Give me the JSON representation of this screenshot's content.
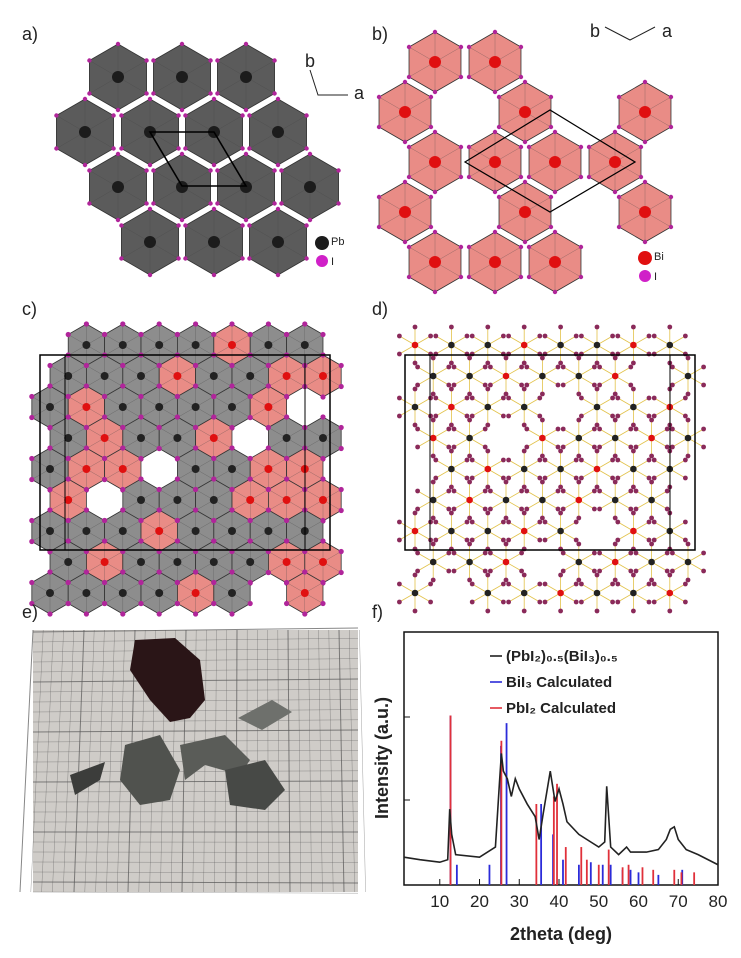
{
  "panels": [
    {
      "label": "a)",
      "axes": [
        "b",
        "a"
      ],
      "legend": [
        "Pb",
        "I"
      ]
    },
    {
      "label": "b)",
      "axes": [
        "b",
        "a"
      ],
      "legend": [
        "Bi",
        "I"
      ]
    },
    {
      "label": "c)"
    },
    {
      "label": "d)"
    },
    {
      "label": "e)"
    },
    {
      "label": "f)"
    }
  ],
  "chart_data": {
    "type": "line",
    "x_label": "2theta (deg)",
    "y_label": "Intensity (a.u.)",
    "xlim": [
      1,
      80
    ],
    "xticks": [
      10,
      20,
      30,
      40,
      50,
      60,
      70,
      80
    ],
    "ylim": [
      0,
      100
    ],
    "legend": "top-right",
    "series": [
      {
        "name": "(PbI₂)₀.₅(BiI₃)₀.₅",
        "color": "#222222",
        "style": "line",
        "x": [
          1,
          5,
          10,
          12,
          12.5,
          13,
          14,
          20,
          24,
          25,
          25.5,
          26,
          27,
          28,
          29,
          30,
          32,
          34,
          35,
          36,
          37.8,
          39,
          40,
          41,
          42,
          45,
          48,
          50,
          51.5,
          52,
          53,
          55,
          57,
          58,
          62,
          65,
          67,
          68,
          69,
          70,
          72,
          75,
          80
        ],
        "values": [
          11,
          10,
          9,
          10,
          30,
          20,
          12,
          11,
          15,
          40,
          52,
          45,
          42,
          35,
          42,
          38,
          32,
          27,
          18,
          28,
          45,
          33,
          38,
          32,
          25,
          20,
          17,
          15,
          17,
          39,
          15,
          12,
          15,
          13,
          13,
          14,
          18,
          22,
          23,
          18,
          14,
          12,
          8
        ]
      },
      {
        "name": "BiI₃ Calculated",
        "color": "#2b2bd9",
        "style": "stick",
        "x": [
          12.7,
          14.3,
          22.5,
          25.4,
          26.8,
          35.5,
          38.5,
          41,
          45,
          48,
          51,
          53,
          56,
          58,
          60,
          65,
          71
        ],
        "values": [
          67,
          8,
          8,
          55,
          64,
          32,
          20,
          10,
          8,
          9,
          8,
          8,
          6,
          6,
          5,
          4,
          6
        ]
      },
      {
        "name": "PbI₂ Calculated",
        "color": "#e0303a",
        "style": "stick",
        "x": [
          12.7,
          25.5,
          34.3,
          38.7,
          39.5,
          41.7,
          45.6,
          47,
          50,
          52.5,
          56,
          57.5,
          61,
          63.7,
          69,
          70.8,
          74
        ],
        "values": [
          67,
          57,
          32,
          35,
          40,
          15,
          15,
          10,
          8,
          14,
          7,
          8,
          7,
          6,
          6,
          5,
          5
        ]
      }
    ]
  }
}
